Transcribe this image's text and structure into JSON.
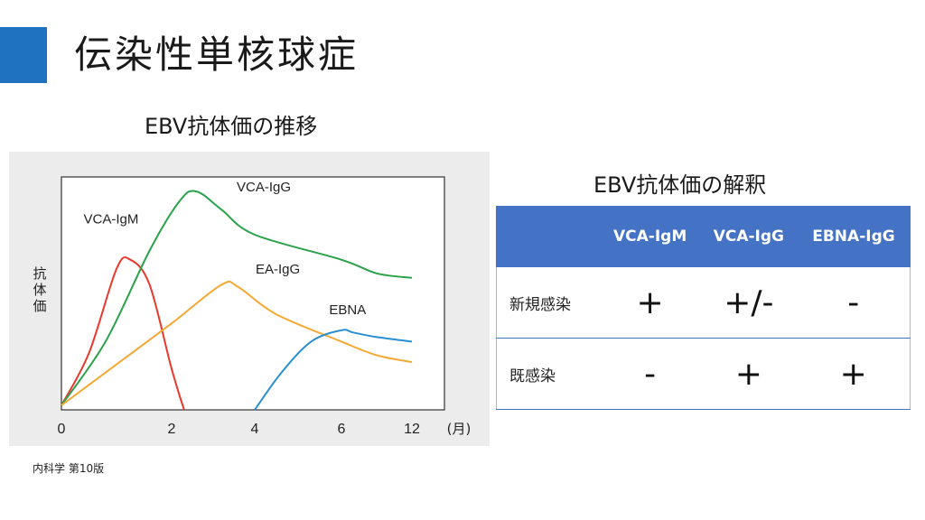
{
  "slide": {
    "title": "伝染性単核球症",
    "source": "内科学 第10版"
  },
  "chart_title": "EBV抗体価の推移",
  "chart_data": {
    "type": "line",
    "ylabel": "抗体価",
    "xlabel": "(月)",
    "x_ticks": [
      "0",
      "2",
      "4",
      "6",
      "12"
    ],
    "series": [
      {
        "name": "VCA-IgM",
        "color": "#e8392c",
        "points": [
          [
            0,
            0.02
          ],
          [
            0.5,
            0.25
          ],
          [
            1,
            0.62
          ],
          [
            1.25,
            0.66
          ],
          [
            1.6,
            0.55
          ],
          [
            2.0,
            0.18
          ],
          [
            2.3,
            0.0
          ]
        ]
      },
      {
        "name": "VCA-IgG",
        "color": "#2aa24a",
        "points": [
          [
            0,
            0.02
          ],
          [
            0.8,
            0.3
          ],
          [
            1.6,
            0.7
          ],
          [
            2.2,
            0.92
          ],
          [
            2.6,
            0.96
          ],
          [
            3.2,
            0.88
          ],
          [
            4,
            0.77
          ],
          [
            6,
            0.66
          ],
          [
            9,
            0.6
          ],
          [
            12,
            0.58
          ]
        ]
      },
      {
        "name": "EA-IgG",
        "color": "#f5a833",
        "points": [
          [
            0,
            0.02
          ],
          [
            1,
            0.2
          ],
          [
            2,
            0.38
          ],
          [
            3.2,
            0.55
          ],
          [
            3.6,
            0.54
          ],
          [
            4.5,
            0.42
          ],
          [
            6,
            0.3
          ],
          [
            9,
            0.24
          ],
          [
            12,
            0.21
          ]
        ]
      },
      {
        "name": "EBNA",
        "color": "#2a8fd0",
        "points": [
          [
            4,
            0.0
          ],
          [
            4.6,
            0.16
          ],
          [
            5.3,
            0.3
          ],
          [
            6,
            0.35
          ],
          [
            7,
            0.34
          ],
          [
            9,
            0.32
          ],
          [
            12,
            0.3
          ]
        ]
      }
    ]
  },
  "table_title": "EBV抗体価の解釈",
  "table": {
    "headers": [
      "",
      "VCA-IgM",
      "VCA-IgG",
      "EBNA-IgG"
    ],
    "rows": [
      {
        "label": "新規感染",
        "values": [
          "+",
          "+/-",
          "-"
        ]
      },
      {
        "label": "既感染",
        "values": [
          "-",
          "+",
          "+"
        ]
      }
    ]
  }
}
